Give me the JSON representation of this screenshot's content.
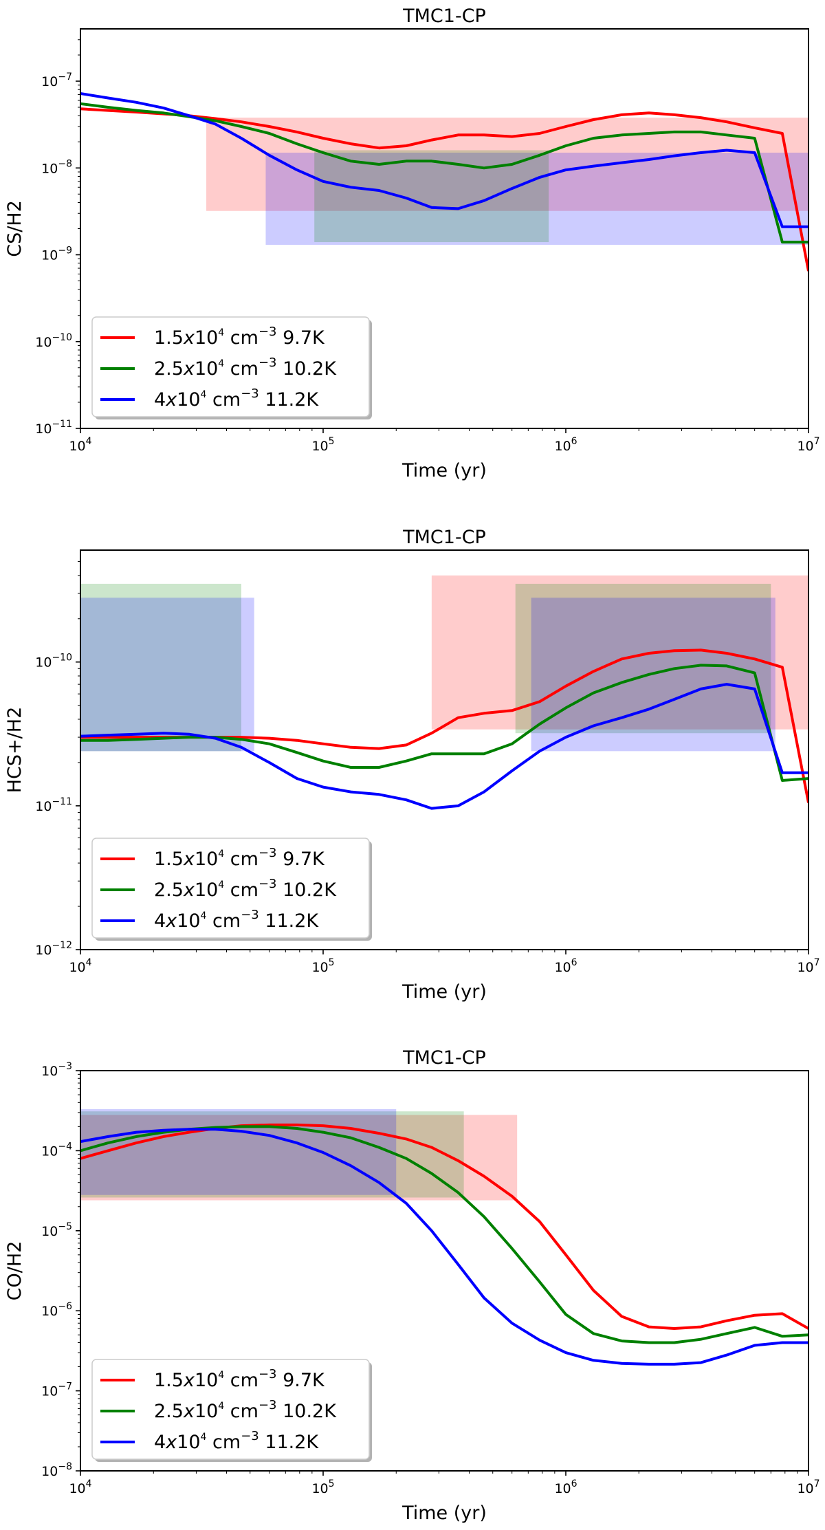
{
  "chart_data": [
    {
      "type": "line",
      "title": "TMC1-CP",
      "xlabel": "Time (yr)",
      "ylabel": "CS/H2",
      "xscale": "log",
      "yscale": "log",
      "xlim": [
        10000,
        10000000
      ],
      "ylim": [
        1e-11,
        4e-07
      ],
      "x_ticks": [
        {
          "value": 10000,
          "base": "10",
          "exp": "4"
        },
        {
          "value": 100000,
          "base": "10",
          "exp": "5"
        },
        {
          "value": 1000000,
          "base": "10",
          "exp": "6"
        },
        {
          "value": 10000000,
          "base": "10",
          "exp": "7"
        }
      ],
      "y_ticks": [
        {
          "value": 1e-11,
          "base": "10",
          "exp": "−11"
        },
        {
          "value": 1e-10,
          "base": "10",
          "exp": "−10"
        },
        {
          "value": 1e-09,
          "base": "10",
          "exp": "−9"
        },
        {
          "value": 1e-08,
          "base": "10",
          "exp": "−8"
        },
        {
          "value": 1e-07,
          "base": "10",
          "exp": "−7"
        }
      ],
      "legend": {
        "position": "lower-left",
        "entries": [
          {
            "prefix": "1.5",
            "x": "x",
            "mantissa": "10",
            "mexp": "4",
            "unit": " cm",
            "uexp": "−3",
            "temp": " 9.7K"
          },
          {
            "prefix": "2.5",
            "x": "x",
            "mantissa": "10",
            "mexp": "4",
            "unit": " cm",
            "uexp": "−3",
            "temp": " 10.2K"
          },
          {
            "prefix": "4",
            "x": "x",
            "mantissa": "10",
            "mexp": "4",
            "unit": " cm",
            "uexp": "−3",
            "temp": " 11.2K"
          }
        ]
      },
      "shaded_regions": [
        {
          "color": "#ff0000",
          "x": [
            33000,
            10000000
          ],
          "y": [
            3.2e-09,
            3.8e-08
          ]
        },
        {
          "color": "#0000ff",
          "x": [
            58000,
            10000000
          ],
          "y": [
            1.3e-09,
            1.5e-08
          ]
        },
        {
          "color": "#008000",
          "x": [
            92000,
            850000
          ],
          "y": [
            1.4e-09,
            1.6e-08
          ]
        }
      ],
      "series": [
        {
          "name": "1.5x10^4 cm^-3 9.7K",
          "color": "#ff0000",
          "x": [
            10000,
            13000,
            17000,
            22000,
            28000,
            36000,
            46000,
            60000,
            78000,
            100000,
            130000,
            170000,
            220000,
            280000,
            360000,
            460000,
            600000,
            780000,
            1000000,
            1300000,
            1700000,
            2200000,
            2800000,
            3600000,
            4600000,
            6000000,
            7800000,
            10000000
          ],
          "y": [
            4.8e-08,
            4.6e-08,
            4.4e-08,
            4.2e-08,
            4e-08,
            3.7e-08,
            3.4e-08,
            3e-08,
            2.6e-08,
            2.2e-08,
            1.9e-08,
            1.7e-08,
            1.8e-08,
            2.1e-08,
            2.4e-08,
            2.4e-08,
            2.3e-08,
            2.5e-08,
            3e-08,
            3.6e-08,
            4.1e-08,
            4.3e-08,
            4.1e-08,
            3.8e-08,
            3.4e-08,
            2.9e-08,
            2.5e-08,
            6.5e-10
          ]
        },
        {
          "name": "2.5x10^4 cm^-3 10.2K",
          "color": "#008000",
          "x": [
            10000,
            13000,
            17000,
            22000,
            28000,
            36000,
            46000,
            60000,
            78000,
            100000,
            130000,
            170000,
            220000,
            280000,
            360000,
            460000,
            600000,
            780000,
            1000000,
            1300000,
            1700000,
            2200000,
            2800000,
            3600000,
            4600000,
            6000000,
            7800000,
            10000000
          ],
          "y": [
            5.5e-08,
            5e-08,
            4.6e-08,
            4.3e-08,
            3.9e-08,
            3.5e-08,
            3e-08,
            2.5e-08,
            1.9e-08,
            1.5e-08,
            1.2e-08,
            1.1e-08,
            1.2e-08,
            1.2e-08,
            1.1e-08,
            1e-08,
            1.1e-08,
            1.4e-08,
            1.8e-08,
            2.2e-08,
            2.4e-08,
            2.5e-08,
            2.6e-08,
            2.6e-08,
            2.4e-08,
            2.2e-08,
            1.4e-09,
            1.4e-09
          ]
        },
        {
          "name": "4x10^4 cm^-3 11.2K",
          "color": "#0000ff",
          "x": [
            10000,
            13000,
            17000,
            22000,
            28000,
            36000,
            46000,
            60000,
            78000,
            100000,
            130000,
            170000,
            220000,
            280000,
            360000,
            460000,
            600000,
            780000,
            1000000,
            1300000,
            1700000,
            2200000,
            2800000,
            3600000,
            4600000,
            6000000,
            7800000,
            10000000
          ],
          "y": [
            7.2e-08,
            6.4e-08,
            5.7e-08,
            4.9e-08,
            4e-08,
            3.2e-08,
            2.2e-08,
            1.4e-08,
            9.5e-09,
            7e-09,
            6e-09,
            5.5e-09,
            4.5e-09,
            3.5e-09,
            3.4e-09,
            4.2e-09,
            5.8e-09,
            7.8e-09,
            9.5e-09,
            1.05e-08,
            1.15e-08,
            1.25e-08,
            1.38e-08,
            1.5e-08,
            1.6e-08,
            1.5e-08,
            2.1e-09,
            2.1e-09
          ]
        }
      ]
    },
    {
      "type": "line",
      "title": "TMC1-CP",
      "xlabel": "Time (yr)",
      "ylabel": "HCS+/H2",
      "xscale": "log",
      "yscale": "log",
      "xlim": [
        10000,
        10000000
      ],
      "ylim": [
        1e-12,
        6e-10
      ],
      "x_ticks": [
        {
          "value": 10000,
          "base": "10",
          "exp": "4"
        },
        {
          "value": 100000,
          "base": "10",
          "exp": "5"
        },
        {
          "value": 1000000,
          "base": "10",
          "exp": "6"
        },
        {
          "value": 10000000,
          "base": "10",
          "exp": "7"
        }
      ],
      "y_ticks": [
        {
          "value": 1e-12,
          "base": "10",
          "exp": "−12"
        },
        {
          "value": 1e-11,
          "base": "10",
          "exp": "−11"
        },
        {
          "value": 1e-10,
          "base": "10",
          "exp": "−10"
        }
      ],
      "legend": {
        "position": "lower-left",
        "entries": [
          {
            "prefix": "1.5",
            "x": "x",
            "mantissa": "10",
            "mexp": "4",
            "unit": " cm",
            "uexp": "−3",
            "temp": " 9.7K"
          },
          {
            "prefix": "2.5",
            "x": "x",
            "mantissa": "10",
            "mexp": "4",
            "unit": " cm",
            "uexp": "−3",
            "temp": " 10.2K"
          },
          {
            "prefix": "4",
            "x": "x",
            "mantissa": "10",
            "mexp": "4",
            "unit": " cm",
            "uexp": "−3",
            "temp": " 11.2K"
          }
        ]
      },
      "shaded_regions": [
        {
          "color": "#008000",
          "x": [
            10000,
            46000
          ],
          "y": [
            2.4e-11,
            3.5e-10
          ]
        },
        {
          "color": "#0000ff",
          "x": [
            10000,
            52000
          ],
          "y": [
            2.4e-11,
            2.8e-10
          ]
        },
        {
          "color": "#ff0000",
          "x": [
            280000,
            10000000
          ],
          "y": [
            3.4e-11,
            4e-10
          ]
        },
        {
          "color": "#008000",
          "x": [
            620000,
            7000000
          ],
          "y": [
            3.2e-11,
            3.5e-10
          ]
        },
        {
          "color": "#0000ff",
          "x": [
            720000,
            7300000
          ],
          "y": [
            2.4e-11,
            2.8e-10
          ]
        }
      ],
      "series": [
        {
          "name": "1.5x10^4 cm^-3 9.7K",
          "color": "#ff0000",
          "x": [
            10000,
            13000,
            17000,
            22000,
            28000,
            36000,
            46000,
            60000,
            78000,
            100000,
            130000,
            170000,
            220000,
            280000,
            360000,
            460000,
            600000,
            780000,
            1000000,
            1300000,
            1700000,
            2200000,
            2800000,
            3600000,
            4600000,
            6000000,
            7800000,
            10000000
          ],
          "y": [
            3e-11,
            3e-11,
            3e-11,
            3e-11,
            3e-11,
            3e-11,
            3e-11,
            2.95e-11,
            2.85e-11,
            2.7e-11,
            2.55e-11,
            2.5e-11,
            2.65e-11,
            3.2e-11,
            4.1e-11,
            4.4e-11,
            4.6e-11,
            5.3e-11,
            6.8e-11,
            8.6e-11,
            1.05e-10,
            1.15e-10,
            1.2e-10,
            1.21e-10,
            1.15e-10,
            1.05e-10,
            9.2e-11,
            1.05e-11
          ]
        },
        {
          "name": "2.5x10^4 cm^-3 10.2K",
          "color": "#008000",
          "x": [
            10000,
            13000,
            17000,
            22000,
            28000,
            36000,
            46000,
            60000,
            78000,
            100000,
            130000,
            170000,
            220000,
            280000,
            360000,
            460000,
            600000,
            780000,
            1000000,
            1300000,
            1700000,
            2200000,
            2800000,
            3600000,
            4600000,
            6000000,
            7800000,
            10000000
          ],
          "y": [
            2.85e-11,
            2.85e-11,
            2.9e-11,
            2.95e-11,
            3e-11,
            3e-11,
            2.9e-11,
            2.7e-11,
            2.35e-11,
            2.05e-11,
            1.85e-11,
            1.85e-11,
            2.05e-11,
            2.3e-11,
            2.3e-11,
            2.3e-11,
            2.7e-11,
            3.7e-11,
            4.8e-11,
            6.1e-11,
            7.2e-11,
            8.2e-11,
            9e-11,
            9.5e-11,
            9.4e-11,
            8.4e-11,
            1.5e-11,
            1.55e-11
          ]
        },
        {
          "name": "4x10^4 cm^-3 11.2K",
          "color": "#0000ff",
          "x": [
            10000,
            13000,
            17000,
            22000,
            28000,
            36000,
            46000,
            60000,
            78000,
            100000,
            130000,
            170000,
            220000,
            280000,
            360000,
            460000,
            600000,
            780000,
            1000000,
            1300000,
            1700000,
            2200000,
            2800000,
            3600000,
            4600000,
            6000000,
            7800000,
            10000000
          ],
          "y": [
            3.05e-11,
            3.1e-11,
            3.15e-11,
            3.2e-11,
            3.15e-11,
            2.95e-11,
            2.55e-11,
            2e-11,
            1.55e-11,
            1.35e-11,
            1.25e-11,
            1.2e-11,
            1.1e-11,
            9.6e-12,
            1e-11,
            1.25e-11,
            1.75e-11,
            2.4e-11,
            3e-11,
            3.6e-11,
            4.1e-11,
            4.7e-11,
            5.5e-11,
            6.5e-11,
            7e-11,
            6.5e-11,
            1.7e-11,
            1.7e-11
          ]
        }
      ]
    },
    {
      "type": "line",
      "title": "TMC1-CP",
      "xlabel": "Time (yr)",
      "ylabel": "CO/H2",
      "xscale": "log",
      "yscale": "log",
      "xlim": [
        10000,
        10000000
      ],
      "ylim": [
        1e-08,
        0.001
      ],
      "x_ticks": [
        {
          "value": 10000,
          "base": "10",
          "exp": "4"
        },
        {
          "value": 100000,
          "base": "10",
          "exp": "5"
        },
        {
          "value": 1000000,
          "base": "10",
          "exp": "6"
        },
        {
          "value": 10000000,
          "base": "10",
          "exp": "7"
        }
      ],
      "y_ticks": [
        {
          "value": 1e-08,
          "base": "10",
          "exp": "−8"
        },
        {
          "value": 1e-07,
          "base": "10",
          "exp": "−7"
        },
        {
          "value": 1e-06,
          "base": "10",
          "exp": "−6"
        },
        {
          "value": 1e-05,
          "base": "10",
          "exp": "−5"
        },
        {
          "value": 0.0001,
          "base": "10",
          "exp": "−4"
        },
        {
          "value": 0.001,
          "base": "10",
          "exp": "−3"
        }
      ],
      "legend": {
        "position": "lower-left",
        "entries": [
          {
            "prefix": "1.5",
            "x": "x",
            "mantissa": "10",
            "mexp": "4",
            "unit": " cm",
            "uexp": "−3",
            "temp": " 9.7K"
          },
          {
            "prefix": "2.5",
            "x": "x",
            "mantissa": "10",
            "mexp": "4",
            "unit": " cm",
            "uexp": "−3",
            "temp": " 10.2K"
          },
          {
            "prefix": "4",
            "x": "x",
            "mantissa": "10",
            "mexp": "4",
            "unit": " cm",
            "uexp": "−3",
            "temp": " 11.2K"
          }
        ]
      },
      "shaded_regions": [
        {
          "color": "#ff0000",
          "x": [
            10000,
            630000
          ],
          "y": [
            2.4e-05,
            0.00028
          ]
        },
        {
          "color": "#008000",
          "x": [
            10000,
            380000
          ],
          "y": [
            2.6e-05,
            0.00031
          ]
        },
        {
          "color": "#0000ff",
          "x": [
            10000,
            200000
          ],
          "y": [
            2.8e-05,
            0.00033
          ]
        }
      ],
      "series": [
        {
          "name": "1.5x10^4 cm^-3 9.7K",
          "color": "#ff0000",
          "x": [
            10000,
            13000,
            17000,
            22000,
            28000,
            36000,
            46000,
            60000,
            78000,
            100000,
            130000,
            170000,
            220000,
            280000,
            360000,
            460000,
            600000,
            780000,
            1000000,
            1300000,
            1700000,
            2200000,
            2800000,
            3600000,
            4600000,
            6000000,
            7800000,
            10000000
          ],
          "y": [
            8e-05,
            0.0001,
            0.000125,
            0.00015,
            0.00017,
            0.00019,
            0.000205,
            0.00021,
            0.00021,
            0.000205,
            0.00019,
            0.000165,
            0.00014,
            0.00011,
            7.5e-05,
            4.8e-05,
            2.7e-05,
            1.3e-05,
            5e-06,
            1.8e-06,
            8.5e-07,
            6.3e-07,
            6e-07,
            6.3e-07,
            7.5e-07,
            8.8e-07,
            9.2e-07,
            6e-07
          ]
        },
        {
          "name": "2.5x10^4 cm^-3 10.2K",
          "color": "#008000",
          "x": [
            10000,
            13000,
            17000,
            22000,
            28000,
            36000,
            46000,
            60000,
            78000,
            100000,
            130000,
            170000,
            220000,
            280000,
            360000,
            460000,
            600000,
            780000,
            1000000,
            1300000,
            1700000,
            2200000,
            2800000,
            3600000,
            4600000,
            6000000,
            7800000,
            10000000
          ],
          "y": [
            0.0001,
            0.000125,
            0.00015,
            0.00017,
            0.000185,
            0.000195,
            0.0002,
            0.0002,
            0.00019,
            0.00017,
            0.000145,
            0.00011,
            8e-05,
            5.2e-05,
            3e-05,
            1.5e-05,
            6e-06,
            2.3e-06,
            9e-07,
            5.2e-07,
            4.2e-07,
            4e-07,
            4e-07,
            4.4e-07,
            5.2e-07,
            6.2e-07,
            4.8e-07,
            5e-07
          ]
        },
        {
          "name": "4x10^4 cm^-3 11.2K",
          "color": "#0000ff",
          "x": [
            10000,
            13000,
            17000,
            22000,
            28000,
            36000,
            46000,
            60000,
            78000,
            100000,
            130000,
            170000,
            220000,
            280000,
            360000,
            460000,
            600000,
            780000,
            1000000,
            1300000,
            1700000,
            2200000,
            2800000,
            3600000,
            4600000,
            6000000,
            7800000,
            10000000
          ],
          "y": [
            0.00013,
            0.00015,
            0.00017,
            0.00018,
            0.000185,
            0.000185,
            0.000175,
            0.000155,
            0.000125,
            9.5e-05,
            6.5e-05,
            4e-05,
            2.2e-05,
            1e-05,
            3.8e-06,
            1.45e-06,
            7e-07,
            4.3e-07,
            3e-07,
            2.4e-07,
            2.2e-07,
            2.15e-07,
            2.15e-07,
            2.25e-07,
            2.8e-07,
            3.7e-07,
            4e-07,
            4e-07
          ]
        }
      ]
    }
  ]
}
